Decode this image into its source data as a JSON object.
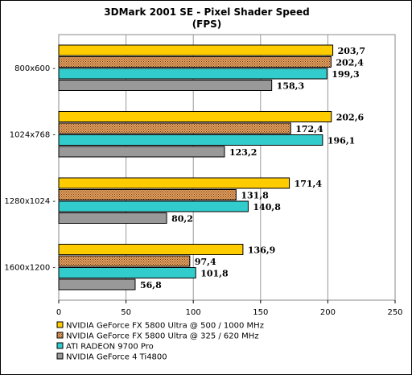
{
  "chart_data": {
    "type": "bar",
    "orientation": "horizontal",
    "title": "3DMark 2001 SE - Pixel Shader Speed",
    "subtitle": "(FPS)",
    "categories": [
      "800x600",
      "1024x768",
      "1280x1024",
      "1600x1200"
    ],
    "series": [
      {
        "name": "NVIDIA GeForce FX 5800 Ultra @ 500 / 1000 MHz",
        "color": "#FFCC00",
        "pattern": "solid",
        "values": [
          203.7,
          202.6,
          171.4,
          136.9
        ],
        "labels": [
          "203,7",
          "202,6",
          "171,4",
          "136,9"
        ]
      },
      {
        "name": "NVIDIA GeForce FX 5800 Ultra @ 325 / 620 MHz",
        "color": "#E8A060",
        "pattern": "dotted",
        "values": [
          202.4,
          172.4,
          131.8,
          97.4
        ],
        "labels": [
          "202,4",
          "172,4",
          "131,8",
          "97,4"
        ]
      },
      {
        "name": "ATI RADEON 9700 Pro",
        "color": "#33CCCC",
        "pattern": "solid",
        "values": [
          199.3,
          196.1,
          140.8,
          101.8
        ],
        "labels": [
          "199,3",
          "196,1",
          "140,8",
          "101,8"
        ]
      },
      {
        "name": "NVIDIA GeForce 4 Ti4800",
        "color": "#999999",
        "pattern": "solid",
        "values": [
          158.3,
          123.2,
          80.2,
          56.8
        ],
        "labels": [
          "158,3",
          "123,2",
          "80,2",
          "56,8"
        ]
      }
    ],
    "xlim": [
      0,
      250
    ],
    "xticks": [
      0,
      50,
      100,
      150,
      200,
      250
    ],
    "xtick_labels": [
      "0",
      "50",
      "100",
      "150",
      "200",
      "250"
    ],
    "grid": "vertical",
    "legend_position": "bottom-left"
  }
}
